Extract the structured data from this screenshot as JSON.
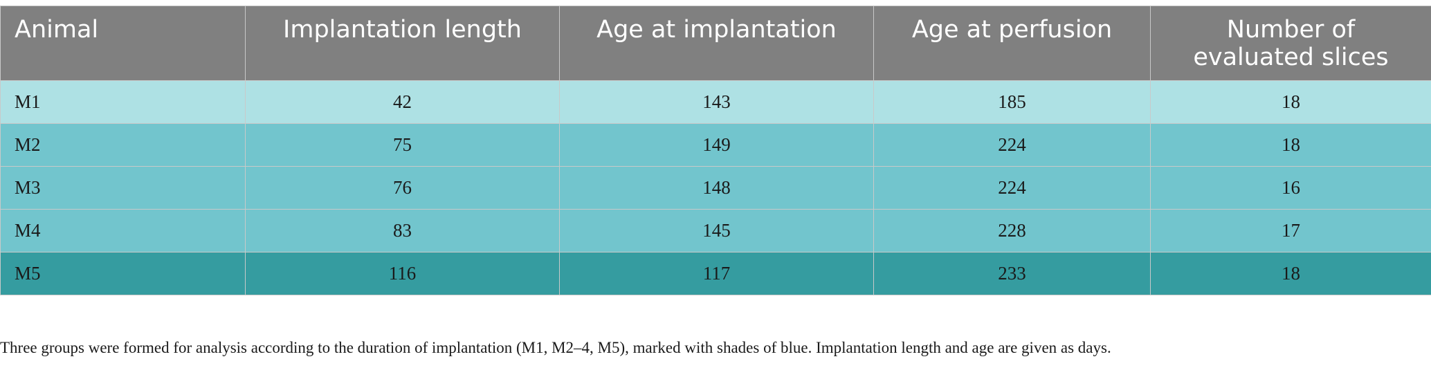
{
  "table": {
    "headers": [
      "Animal",
      "Implantation length",
      "Age at implantation",
      "Age at perfusion",
      "Number of evaluated slices"
    ],
    "rows": [
      [
        "M1",
        "42",
        "143",
        "185",
        "18"
      ],
      [
        "M2",
        "75",
        "149",
        "224",
        "18"
      ],
      [
        "M3",
        "76",
        "148",
        "224",
        "16"
      ],
      [
        "M4",
        "83",
        "145",
        "228",
        "17"
      ],
      [
        "M5",
        "116",
        "117",
        "233",
        "18"
      ]
    ],
    "colors": {
      "header_bg": "#808080",
      "group_1": "#aee1e4",
      "group_2": "#72c5cd",
      "group_3": "#359ca0"
    }
  },
  "footnote": "Three groups were formed for analysis according to the duration of implantation (M1, M2–4, M5), marked with shades of blue. Implantation length and age are given as days."
}
